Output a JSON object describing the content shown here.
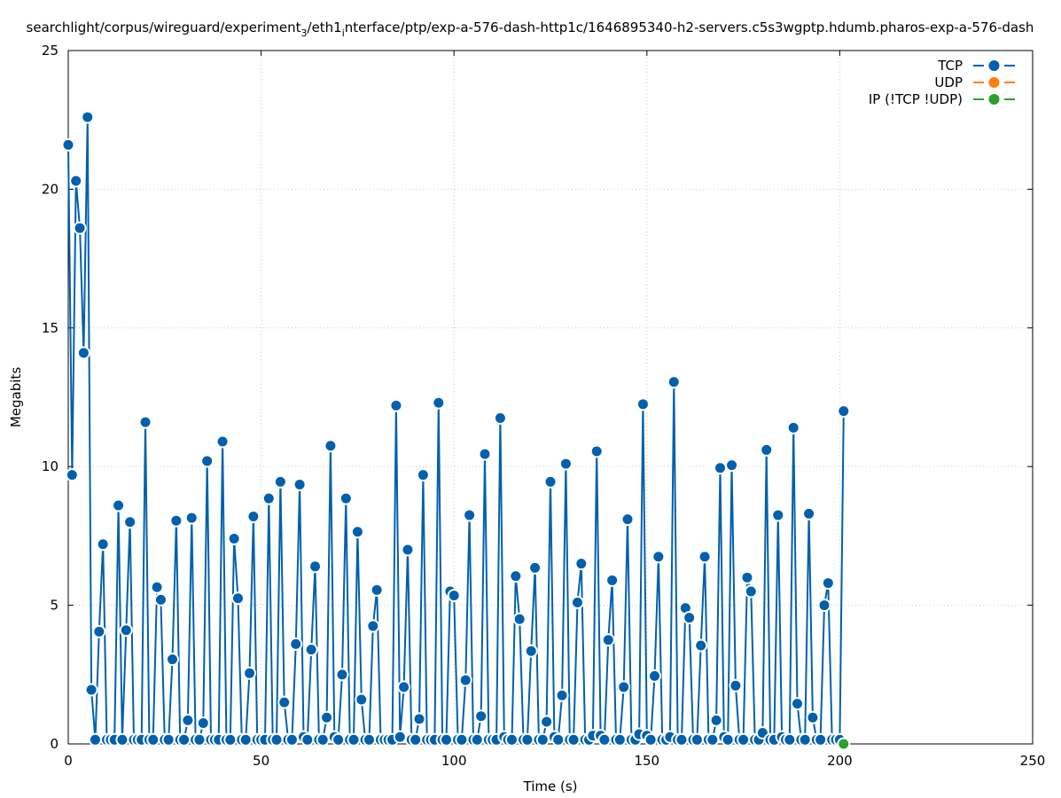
{
  "chart_data": {
    "type": "line",
    "title": "searchlight/corpus/wireguard/experiment_3/eth1_interface/ptp/exp-a-576-dash-http1c/1646895340-h2-servers.c5s3wgptp.hdumb.pharos-exp-a-576-dash",
    "title_parts": {
      "a": "searchlight/corpus/wireguard/experiment",
      "sub1": "3",
      "b": "/eth1",
      "sub2": "i",
      "c": "nterface/ptp/exp-a-576-dash-http1c/1646895340-h2-servers.c5s3wgptp.hdumb.pharos-exp-a-576-dash"
    },
    "xlabel": "Time (s)",
    "ylabel": "Megabits",
    "xlim": [
      0,
      250
    ],
    "ylim": [
      0,
      25
    ],
    "xticks": [
      0,
      50,
      100,
      150,
      200,
      250
    ],
    "yticks": [
      0,
      5,
      10,
      15,
      20,
      25
    ],
    "grid": true,
    "legend_position": "top-right",
    "series": [
      {
        "name": "TCP",
        "color": "#0060ad",
        "x": [
          0,
          1,
          2,
          3,
          4,
          5,
          6,
          7,
          8,
          9,
          10,
          11,
          12,
          13,
          14,
          15,
          16,
          17,
          18,
          19,
          20,
          21,
          22,
          23,
          24,
          25,
          26,
          27,
          28,
          29,
          30,
          31,
          32,
          33,
          34,
          35,
          36,
          37,
          38,
          39,
          40,
          41,
          42,
          43,
          44,
          45,
          46,
          47,
          48,
          49,
          50,
          51,
          52,
          53,
          54,
          55,
          56,
          57,
          58,
          59,
          60,
          61,
          62,
          63,
          64,
          65,
          66,
          67,
          68,
          69,
          70,
          71,
          72,
          73,
          74,
          75,
          76,
          77,
          78,
          79,
          80,
          81,
          82,
          83,
          84,
          85,
          86,
          87,
          88,
          89,
          90,
          91,
          92,
          93,
          94,
          95,
          96,
          97,
          98,
          99,
          100,
          101,
          102,
          103,
          104,
          105,
          106,
          107,
          108,
          109,
          110,
          111,
          112,
          113,
          114,
          115,
          116,
          117,
          118,
          119,
          120,
          121,
          122,
          123,
          124,
          125,
          126,
          127,
          128,
          129,
          130,
          131,
          132,
          133,
          134,
          135,
          136,
          137,
          138,
          139,
          140,
          141,
          142,
          143,
          144,
          145,
          146,
          147,
          148,
          149,
          150,
          151,
          152,
          153,
          154,
          155,
          156,
          157,
          158,
          159,
          160,
          161,
          162,
          163,
          164,
          165,
          166,
          167,
          168,
          169,
          170,
          171,
          172,
          173,
          174,
          175,
          176,
          177,
          178,
          179,
          180,
          181,
          182,
          183,
          184,
          185,
          186,
          187,
          188,
          189,
          190,
          191,
          192,
          193,
          194,
          195,
          196,
          197,
          198,
          199,
          200,
          201
        ],
        "values": [
          21.6,
          9.7,
          20.3,
          18.6,
          14.1,
          22.6,
          1.95,
          0.15,
          4.05,
          7.2,
          0.15,
          0.15,
          0.15,
          8.6,
          0.15,
          4.1,
          8.0,
          0.15,
          0.15,
          0.15,
          11.6,
          0.15,
          0.15,
          5.65,
          5.2,
          0.15,
          0.15,
          3.05,
          8.05,
          0.15,
          0.15,
          0.85,
          8.15,
          0.15,
          0.15,
          0.75,
          10.2,
          0.15,
          0.15,
          0.15,
          10.9,
          0.15,
          0.15,
          7.4,
          5.25,
          0.15,
          0.15,
          2.55,
          8.2,
          0.15,
          0.15,
          0.15,
          8.85,
          0.15,
          0.15,
          9.45,
          1.5,
          0.15,
          0.15,
          3.6,
          9.35,
          0.25,
          0.15,
          3.4,
          6.4,
          0.15,
          0.15,
          0.95,
          10.75,
          0.25,
          0.15,
          2.5,
          8.85,
          0.15,
          0.15,
          7.65,
          1.6,
          0.15,
          0.15,
          4.25,
          5.55,
          0.15,
          0.15,
          0.15,
          0.15,
          12.2,
          0.25,
          2.05,
          7.0,
          0.15,
          0.15,
          0.9,
          9.7,
          0.15,
          0.15,
          0.15,
          12.3,
          0.15,
          0.15,
          5.5,
          5.35,
          0.15,
          0.15,
          2.3,
          8.25,
          0.15,
          0.15,
          1.0,
          10.45,
          0.15,
          0.15,
          0.15,
          11.75,
          0.25,
          0.15,
          0.15,
          6.05,
          4.5,
          0.15,
          0.15,
          3.35,
          6.35,
          0.15,
          0.15,
          0.8,
          9.45,
          0.25,
          0.15,
          1.75,
          10.1,
          0.15,
          0.15,
          5.1,
          6.5,
          0.15,
          0.15,
          0.3,
          10.55,
          0.3,
          0.15,
          3.75,
          5.9,
          0.15,
          0.15,
          2.05,
          8.1,
          0.15,
          0.15,
          0.35,
          12.25,
          0.3,
          0.15,
          2.45,
          6.75,
          0.15,
          0.15,
          0.25,
          13.05,
          0.15,
          0.15,
          4.9,
          4.55,
          0.15,
          0.15,
          3.55,
          6.75,
          0.15,
          0.15,
          0.85,
          9.95,
          0.25,
          0.15,
          10.05,
          2.1,
          0.15,
          0.15,
          6.0,
          5.5,
          0.15,
          0.15,
          0.4,
          10.6,
          0.15,
          0.15,
          8.25,
          0.25,
          0.15,
          0.15,
          11.4,
          1.45,
          0.15,
          0.15,
          8.3,
          0.95,
          0.15,
          0.15,
          5.0,
          5.8,
          0.15,
          0.15,
          0.15,
          12.0
        ]
      },
      {
        "name": "UDP",
        "color": "#ff7f0e",
        "x": [],
        "values": []
      },
      {
        "name": "IP (!TCP  !UDP)",
        "color": "#2ca02c",
        "x": [
          201
        ],
        "values": [
          0
        ]
      }
    ]
  }
}
